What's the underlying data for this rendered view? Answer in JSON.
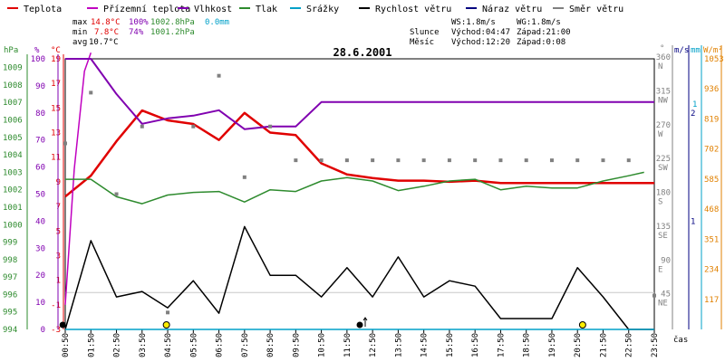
{
  "colors": {
    "teplota": "#e00000",
    "prizemni": "#c000c0",
    "vlhkost": "#8000b0",
    "tlak": "#2e8b2e",
    "srazky": "#00a0c8",
    "rychlost": "#000000",
    "naraz": "#000080",
    "smer": "#808080",
    "sun": "#ffee00",
    "border": "#000000",
    "grid": "#c8c8c8",
    "orange": "#e08000"
  },
  "legend": [
    {
      "label": "Teplota",
      "color_key": "teplota"
    },
    {
      "label": "Přízemní teplota",
      "color_key": "prizemni"
    },
    {
      "label": "Vlhkost",
      "color_key": "vlhkost"
    },
    {
      "label": "Tlak",
      "color_key": "tlak"
    },
    {
      "label": "Srážky",
      "color_key": "srazky"
    },
    {
      "label": "Rychlost větru",
      "color_key": "rychlost"
    },
    {
      "label": "Náraz větru",
      "color_key": "naraz"
    },
    {
      "label": "Směr větru",
      "color_key": "smer"
    }
  ],
  "stats": {
    "max_label": "max",
    "min_label": "min",
    "avg_label": "avg",
    "max_temp": "14.8°C",
    "max_hum": "100%",
    "max_press": "1002.8hPa",
    "max_rain": "0.0mm",
    "min_temp": "7.8°C",
    "min_hum": "74%",
    "min_press": "1001.2hPa",
    "avg_temp": "10.7°C"
  },
  "wind_info": {
    "ws": "WS:1.8m/s",
    "wg": "WG:1.8m/s"
  },
  "sun_info": {
    "label": "Slunce",
    "rise": "Východ:04:47",
    "set": "Západ:21:00"
  },
  "moon_info": {
    "label": "Měsíc",
    "rise": "Východ:12:20",
    "set": "Západ:0:08"
  },
  "date": "28.6.2001",
  "axis_headers": {
    "hpa": "hPa",
    "pct": "%",
    "degc": "°C",
    "deg": "°",
    "ms": "m/s",
    "mm": "mm",
    "wm2": "W/m²",
    "cas": "čas"
  },
  "chart_data": {
    "type": "line",
    "title": "28.6.2001",
    "x": [
      "00:50",
      "01:50",
      "02:50",
      "03:50",
      "04:50",
      "05:50",
      "06:50",
      "07:50",
      "08:50",
      "09:50",
      "10:50",
      "11:50",
      "12:50",
      "13:50",
      "14:50",
      "15:50",
      "16:50",
      "17:50",
      "18:50",
      "19:50",
      "20:50",
      "21:50",
      "22:50",
      "23:50"
    ],
    "xlabel": "čas",
    "axes": {
      "pressure_hpa": {
        "ticks": [
          1009,
          1008,
          1007,
          1006,
          1005,
          1004,
          1003,
          1002,
          1001,
          1000,
          999,
          998,
          997,
          996,
          995,
          994
        ],
        "range": [
          994,
          1009.5
        ]
      },
      "humidity_pct": {
        "ticks": [
          100,
          90,
          80,
          70,
          60,
          50,
          40,
          30,
          20,
          10,
          0
        ],
        "range": [
          0,
          100
        ]
      },
      "temperature_c": {
        "ticks": [
          19,
          17,
          15,
          13,
          11,
          9,
          7,
          5,
          3,
          1,
          -1,
          -3
        ],
        "range": [
          -3,
          19
        ]
      },
      "wind_dir_deg": {
        "ticks": [
          360,
          315,
          270,
          225,
          180,
          135,
          90,
          45
        ],
        "labels": [
          "N",
          "NW",
          "W",
          "SW",
          "S",
          "SE",
          "E",
          "NE"
        ],
        "range": [
          0,
          360
        ]
      },
      "wind_speed_ms": {
        "ticks": [
          1,
          2
        ],
        "range": [
          0,
          2.5
        ]
      },
      "rain_mm": {
        "ticks": [
          1
        ],
        "range": [
          0,
          1.2
        ]
      },
      "radiation_wm2": {
        "ticks": [
          1053,
          936,
          819,
          702,
          585,
          468,
          351,
          234,
          117
        ],
        "range": [
          0,
          1053
        ]
      }
    },
    "series": [
      {
        "name": "Teplota",
        "axis": "temperature_c",
        "color_key": "teplota",
        "points": [
          [
            0,
            7.8
          ],
          [
            1,
            9.5
          ],
          [
            2,
            12.3
          ],
          [
            3,
            14.8
          ],
          [
            4,
            14.0
          ],
          [
            5,
            13.7
          ],
          [
            6,
            12.4
          ],
          [
            7,
            14.6
          ],
          [
            8,
            13.0
          ],
          [
            9,
            12.8
          ],
          [
            10,
            10.5
          ],
          [
            11,
            9.6
          ],
          [
            12,
            9.3
          ],
          [
            13,
            9.1
          ],
          [
            14,
            9.1
          ],
          [
            15,
            9.0
          ],
          [
            16,
            9.1
          ],
          [
            17,
            8.9
          ],
          [
            18,
            8.9
          ],
          [
            19,
            8.9
          ],
          [
            20,
            8.9
          ],
          [
            21,
            8.9
          ],
          [
            22,
            8.9
          ],
          [
            23,
            8.9
          ]
        ]
      },
      {
        "name": "Přízemní teplota",
        "axis": "temperature_c",
        "color_key": "prizemni",
        "points": [
          [
            0,
            -1.0
          ],
          [
            0.35,
            10
          ],
          [
            0.75,
            18
          ],
          [
            1.0,
            19.5
          ]
        ]
      },
      {
        "name": "Vlhkost",
        "axis": "humidity_pct",
        "color_key": "vlhkost",
        "points": [
          [
            0,
            100
          ],
          [
            1,
            100
          ],
          [
            2,
            87
          ],
          [
            3,
            76
          ],
          [
            4,
            78
          ],
          [
            5,
            79
          ],
          [
            6,
            81
          ],
          [
            7,
            74
          ],
          [
            8,
            75
          ],
          [
            9,
            75
          ],
          [
            10,
            84
          ],
          [
            11,
            84
          ],
          [
            12,
            84
          ],
          [
            13,
            84
          ],
          [
            14,
            84
          ],
          [
            15,
            84
          ],
          [
            16,
            84
          ],
          [
            17,
            84
          ],
          [
            18,
            84
          ],
          [
            19,
            84
          ],
          [
            20,
            84
          ],
          [
            21,
            84
          ],
          [
            22,
            84
          ],
          [
            23,
            84
          ]
        ]
      },
      {
        "name": "Tlak",
        "axis": "pressure_hpa",
        "color_key": "tlak",
        "points": [
          [
            0,
            1002.6
          ],
          [
            1,
            1002.6
          ],
          [
            2,
            1001.6
          ],
          [
            3,
            1001.2
          ],
          [
            4,
            1001.7
          ],
          [
            5,
            1001.85
          ],
          [
            6,
            1001.9
          ],
          [
            7,
            1001.3
          ],
          [
            8,
            1002.0
          ],
          [
            9,
            1001.9
          ],
          [
            10,
            1002.5
          ],
          [
            11,
            1002.7
          ],
          [
            12,
            1002.5
          ],
          [
            13,
            1001.95
          ],
          [
            14,
            1002.2
          ],
          [
            15,
            1002.5
          ],
          [
            16,
            1002.6
          ],
          [
            17,
            1002.0
          ],
          [
            18,
            1002.2
          ],
          [
            19,
            1002.1
          ],
          [
            20,
            1002.1
          ],
          [
            21,
            1002.5
          ],
          [
            22,
            1002.8
          ],
          [
            22.6,
            1003.0
          ]
        ]
      },
      {
        "name": "Rychlost větru",
        "axis": "wind_speed_ms",
        "color_key": "rychlost",
        "points": [
          [
            0,
            0.0
          ],
          [
            1,
            0.82
          ],
          [
            2,
            0.3
          ],
          [
            3,
            0.35
          ],
          [
            4,
            0.2
          ],
          [
            5,
            0.45
          ],
          [
            6,
            0.15
          ],
          [
            7,
            0.95
          ],
          [
            8,
            0.5
          ],
          [
            9,
            0.5
          ],
          [
            10,
            0.3
          ],
          [
            11,
            0.57
          ],
          [
            12,
            0.3
          ],
          [
            13,
            0.67
          ],
          [
            14,
            0.3
          ],
          [
            15,
            0.45
          ],
          [
            16,
            0.4
          ],
          [
            17,
            0.1
          ],
          [
            18,
            0.1
          ],
          [
            19,
            0.1
          ],
          [
            20,
            0.57
          ],
          [
            21,
            0.3
          ],
          [
            22,
            0.0
          ],
          [
            23,
            0.0
          ]
        ]
      },
      {
        "name": "Směr větru",
        "axis": "wind_dir_deg",
        "type": "scatter",
        "color_key": "smer",
        "points": [
          [
            0,
            247.5
          ],
          [
            1,
            315
          ],
          [
            2,
            180
          ],
          [
            3,
            270
          ],
          [
            4,
            22.5
          ],
          [
            5,
            270
          ],
          [
            6,
            337.5
          ],
          [
            7,
            202.5
          ],
          [
            8,
            270
          ],
          [
            9,
            225
          ],
          [
            10,
            225
          ],
          [
            11,
            225
          ],
          [
            12,
            225
          ],
          [
            13,
            225
          ],
          [
            14,
            225
          ],
          [
            15,
            225
          ],
          [
            16,
            225
          ],
          [
            17,
            225
          ],
          [
            18,
            225
          ],
          [
            19,
            225
          ],
          [
            20,
            225
          ],
          [
            21,
            225
          ],
          [
            22,
            225
          ],
          [
            23,
            45
          ]
        ]
      },
      {
        "name": "Srážky",
        "axis": "rain_mm",
        "color_key": "srazky",
        "points": [
          [
            0,
            0
          ],
          [
            23,
            0
          ]
        ]
      }
    ],
    "markers": [
      {
        "kind": "moonset",
        "x": -0.1
      },
      {
        "kind": "sunrise",
        "x": 3.95
      },
      {
        "kind": "moonrise",
        "x": 11.5
      },
      {
        "kind": "sunset",
        "x": 20.2
      }
    ]
  }
}
